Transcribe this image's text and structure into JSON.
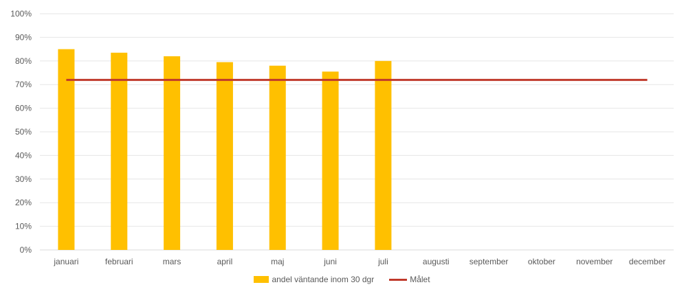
{
  "chart_data": {
    "type": "bar",
    "categories": [
      "januari",
      "februari",
      "mars",
      "april",
      "maj",
      "juni",
      "juli",
      "augusti",
      "september",
      "oktober",
      "november",
      "december"
    ],
    "series": [
      {
        "name": "andel väntande inom 30 dgr",
        "type": "bar",
        "color": "#ffc000",
        "values": [
          0.85,
          0.835,
          0.82,
          0.795,
          0.78,
          0.755,
          0.8,
          null,
          null,
          null,
          null,
          null
        ]
      },
      {
        "name": "Målet",
        "type": "line",
        "color": "#c0392b",
        "value": 0.72
      }
    ],
    "ylim": [
      0,
      1
    ],
    "yticks": [
      "0%",
      "10%",
      "20%",
      "30%",
      "40%",
      "50%",
      "60%",
      "70%",
      "80%",
      "90%",
      "100%"
    ],
    "grid": true,
    "legend_position": "bottom",
    "title": "",
    "xlabel": "",
    "ylabel": ""
  }
}
